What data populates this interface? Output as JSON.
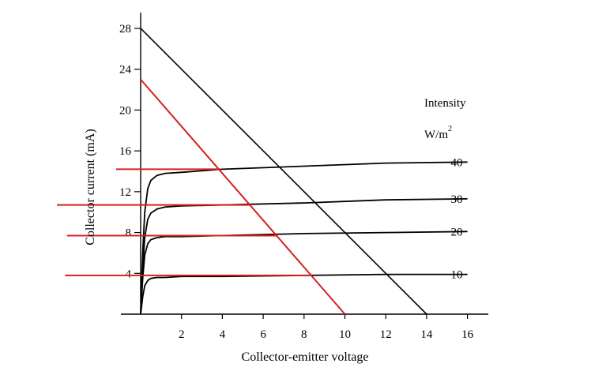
{
  "chart_data": {
    "type": "line",
    "xlabel": "Collector-emitter voltage",
    "ylabel": "Collector current (mA)",
    "xlim": [
      0,
      17
    ],
    "ylim": [
      0,
      29
    ],
    "x_ticks": [
      2,
      4,
      6,
      8,
      10,
      12,
      14,
      16
    ],
    "y_ticks": [
      4,
      8,
      12,
      16,
      20,
      24,
      28
    ],
    "legend_title": "Intensity",
    "legend_unit": "W/m",
    "legend_unit_sup": "2",
    "series": [
      {
        "name": "40",
        "color": "#000000",
        "x": [
          0,
          0.1,
          0.2,
          0.35,
          0.5,
          0.8,
          1.2,
          2,
          4,
          8,
          12,
          16.0
        ],
        "y": [
          0,
          6,
          10,
          12.3,
          13.1,
          13.6,
          13.8,
          13.9,
          14.2,
          14.5,
          14.8,
          14.9
        ]
      },
      {
        "name": "30",
        "color": "#000000",
        "x": [
          0,
          0.1,
          0.2,
          0.35,
          0.5,
          0.8,
          1.2,
          2,
          4,
          8,
          12,
          16.0
        ],
        "y": [
          0,
          4.5,
          7.5,
          9.3,
          9.9,
          10.3,
          10.5,
          10.6,
          10.7,
          10.9,
          11.2,
          11.3
        ]
      },
      {
        "name": "20",
        "color": "#000000",
        "x": [
          0,
          0.1,
          0.2,
          0.35,
          0.5,
          0.8,
          1.2,
          2,
          4,
          8,
          12,
          16.0
        ],
        "y": [
          0,
          3.5,
          5.8,
          6.9,
          7.3,
          7.5,
          7.6,
          7.6,
          7.7,
          7.9,
          8.0,
          8.1
        ]
      },
      {
        "name": "10",
        "color": "#000000",
        "x": [
          0,
          0.1,
          0.2,
          0.35,
          0.5,
          0.8,
          1.2,
          2,
          4,
          8,
          12,
          16.0
        ],
        "y": [
          0,
          1.7,
          2.8,
          3.3,
          3.5,
          3.6,
          3.6,
          3.7,
          3.7,
          3.8,
          3.9,
          3.9
        ]
      }
    ],
    "load_lines": [
      {
        "color": "#000000",
        "x": [
          0,
          14
        ],
        "y": [
          28,
          0
        ]
      },
      {
        "color": "#d62020",
        "x": [
          0,
          10
        ],
        "y": [
          23,
          0
        ]
      }
    ],
    "reference_lines": [
      {
        "color": "#d62020",
        "y": 14.2,
        "x": [
          -1.2,
          3.9
        ]
      },
      {
        "color": "#d62020",
        "y": 10.7,
        "x": [
          -4.1,
          5.4
        ]
      },
      {
        "color": "#d62020",
        "y": 7.7,
        "x": [
          -3.6,
          6.7
        ]
      },
      {
        "color": "#d62020",
        "y": 3.8,
        "x": [
          -3.7,
          8.4
        ]
      }
    ]
  }
}
